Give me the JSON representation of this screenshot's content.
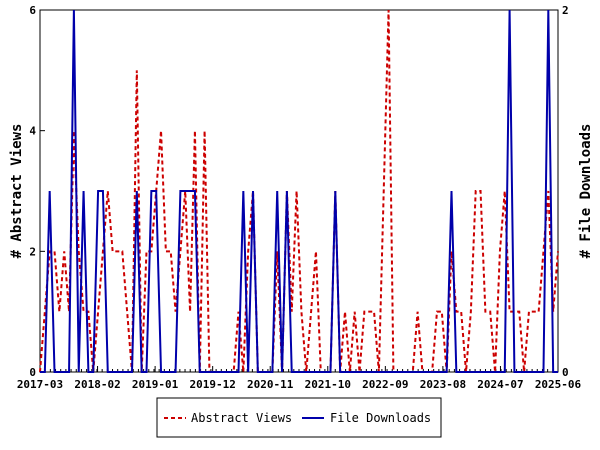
{
  "chart_data": {
    "type": "line",
    "x_tick_labels": [
      "2017-03",
      "2018-02",
      "2019-01",
      "2019-12",
      "2020-11",
      "2021-10",
      "2022-09",
      "2023-08",
      "2024-07",
      "2025-06"
    ],
    "y_left": {
      "label": "# Abstract Views",
      "ylim": [
        0,
        6
      ],
      "ticks": [
        "0",
        "2",
        "4",
        "6"
      ]
    },
    "y_right": {
      "label": "# File Downloads",
      "ylim": [
        0,
        2
      ],
      "ticks": [
        "0",
        "2"
      ]
    },
    "legend_position": "bottom-center",
    "series": [
      {
        "name": "Abstract Views",
        "axis": "left",
        "color": "#cc0000",
        "style": "dashed",
        "values": [
          0,
          1,
          2,
          2,
          1,
          2,
          1,
          4,
          2,
          1,
          1,
          0,
          1,
          2,
          3,
          2,
          2,
          2,
          1,
          0,
          5,
          0,
          2,
          2,
          3,
          4,
          2,
          2,
          1,
          2,
          3,
          1,
          4,
          0,
          4,
          0,
          0,
          0,
          0,
          0,
          0,
          1,
          0,
          2,
          3,
          0,
          0,
          0,
          0,
          2,
          0,
          3,
          1,
          3,
          1,
          0,
          1,
          2,
          0,
          0,
          0,
          3,
          0,
          1,
          0,
          1,
          0,
          1,
          1,
          1,
          0,
          3,
          6,
          0,
          0,
          0,
          0,
          0,
          1,
          0,
          0,
          0,
          1,
          1,
          0,
          2,
          1,
          1,
          0,
          1,
          3,
          3,
          1,
          1,
          0,
          2,
          3,
          1,
          1,
          1,
          0,
          1,
          1,
          1,
          2,
          3,
          1,
          2
        ]
      },
      {
        "name": "File Downloads",
        "axis": "right",
        "color": "#0000aa",
        "style": "solid",
        "values": [
          0,
          0,
          1,
          0,
          0,
          0,
          0,
          2,
          0,
          1,
          0,
          0,
          1,
          1,
          0,
          0,
          0,
          0,
          0,
          0,
          1,
          0,
          0,
          1,
          1,
          0,
          0,
          0,
          0,
          1,
          1,
          1,
          1,
          0,
          0,
          0,
          0,
          0,
          0,
          0,
          0,
          0,
          1,
          0,
          1,
          0,
          0,
          0,
          0,
          1,
          0,
          1,
          0,
          0,
          0,
          0,
          0,
          0,
          0,
          0,
          0,
          1,
          0,
          0,
          0,
          0,
          0,
          0,
          0,
          0,
          0,
          0,
          0,
          0,
          0,
          0,
          0,
          0,
          0,
          0,
          0,
          0,
          0,
          0,
          0,
          1,
          0,
          0,
          0,
          0,
          0,
          0,
          0,
          0,
          0,
          0,
          0,
          2,
          0,
          0,
          0,
          0,
          0,
          0,
          0,
          2,
          0,
          0
        ]
      }
    ]
  }
}
